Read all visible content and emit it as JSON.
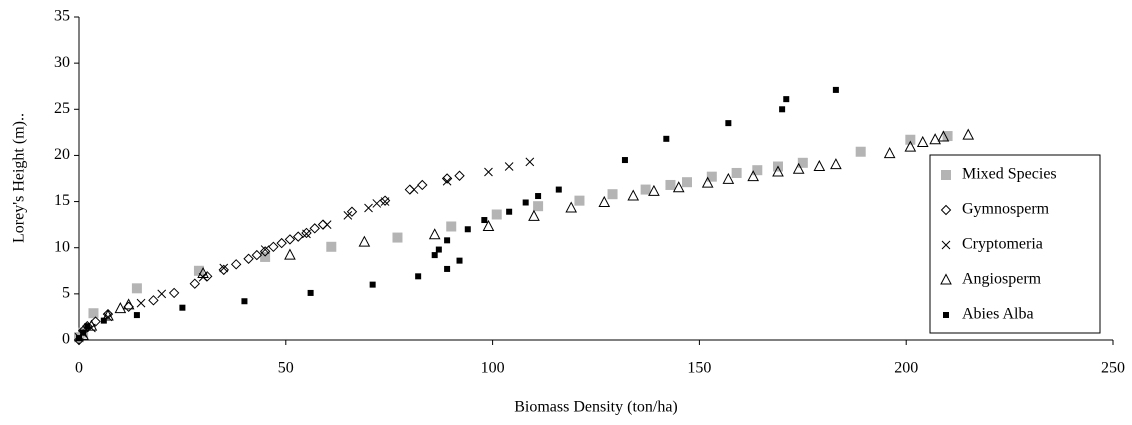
{
  "chart_data": {
    "type": "scatter",
    "xlabel": "Biomass Density (ton/ha)",
    "ylabel": "Lorey's Height (m)..",
    "xlim": [
      0,
      250
    ],
    "xticks": [
      0,
      50,
      100,
      150,
      200,
      250
    ],
    "ylim": [
      0,
      35
    ],
    "yticks": [
      0,
      5,
      10,
      15,
      20,
      25,
      30,
      35
    ],
    "grid": false,
    "legend": "right",
    "series": [
      {
        "name": "Mixed Species",
        "color": "#b4b4b4",
        "marker": "square",
        "x": [
          0,
          1,
          3.5,
          14,
          29,
          45,
          61,
          77,
          90,
          101,
          111,
          121,
          129,
          137,
          143,
          147,
          153,
          159,
          164,
          169,
          175,
          189,
          201,
          210
        ],
        "values": [
          0.3,
          0.8,
          2.9,
          5.6,
          7.5,
          9,
          10.1,
          11.1,
          12.3,
          13.6,
          14.5,
          15.1,
          15.8,
          16.3,
          16.8,
          17.1,
          17.7,
          18.1,
          18.4,
          18.8,
          19.2,
          20.4,
          21.7,
          22.1
        ]
      },
      {
        "name": "Gymnosperm",
        "color": "#000000",
        "marker": "diamond",
        "x": [
          0,
          1,
          2,
          4,
          7,
          12,
          18,
          23,
          28,
          31,
          35,
          38,
          41,
          43,
          45,
          47,
          49,
          51,
          53,
          55,
          57,
          59,
          66,
          74,
          80,
          83,
          89,
          92
        ],
        "values": [
          0,
          1,
          1.5,
          2,
          2.8,
          3.6,
          4.3,
          5.1,
          6.1,
          6.9,
          7.6,
          8.2,
          8.8,
          9.2,
          9.6,
          10.1,
          10.5,
          10.9,
          11.2,
          11.6,
          12.1,
          12.5,
          13.9,
          15.1,
          16.3,
          16.8,
          17.5,
          17.8
        ]
      },
      {
        "name": "Cryptomeria",
        "color": "#000000",
        "marker": "x",
        "x": [
          0,
          1,
          3,
          7,
          15,
          20,
          30,
          35,
          45,
          55,
          60,
          65,
          70,
          72,
          74,
          81,
          89,
          99,
          104,
          109
        ],
        "values": [
          0.3,
          0.7,
          1.3,
          2.5,
          4,
          5,
          6.8,
          7.8,
          9.8,
          11.5,
          12.5,
          13.5,
          14.3,
          14.8,
          15,
          16.3,
          17.2,
          18.2,
          18.8,
          19.3
        ]
      },
      {
        "name": "Angiosperm",
        "color": "#000000",
        "marker": "triangle",
        "x": [
          1,
          3,
          7,
          10,
          12,
          30,
          51,
          69,
          86,
          99,
          110,
          119,
          127,
          134,
          139,
          145,
          152,
          157,
          163,
          169,
          174,
          179,
          183,
          196,
          201,
          204,
          207,
          209,
          215
        ],
        "values": [
          0.5,
          1.5,
          2.6,
          3.4,
          3.8,
          7.2,
          9.2,
          10.6,
          11.4,
          12.3,
          13.4,
          14.3,
          14.9,
          15.6,
          16.1,
          16.5,
          17,
          17.4,
          17.7,
          18.2,
          18.5,
          18.8,
          19,
          20.2,
          20.9,
          21.4,
          21.7,
          22,
          22.2
        ]
      },
      {
        "name": "Abies Alba",
        "color": "#000000",
        "marker": "filled-square",
        "x": [
          0,
          1,
          2,
          6,
          14,
          25,
          40,
          56,
          71,
          82,
          86,
          87,
          89,
          89,
          92,
          94,
          98,
          104,
          108,
          111,
          116,
          132,
          142,
          157,
          170,
          171,
          183
        ],
        "values": [
          0.2,
          0.8,
          1.5,
          2.1,
          2.7,
          3.5,
          4.2,
          5.1,
          6,
          6.9,
          9.2,
          9.8,
          10.8,
          7.7,
          8.6,
          12,
          13,
          13.9,
          14.9,
          15.6,
          16.3,
          19.5,
          21.8,
          23.5,
          25,
          26.1,
          27.1
        ]
      }
    ]
  }
}
